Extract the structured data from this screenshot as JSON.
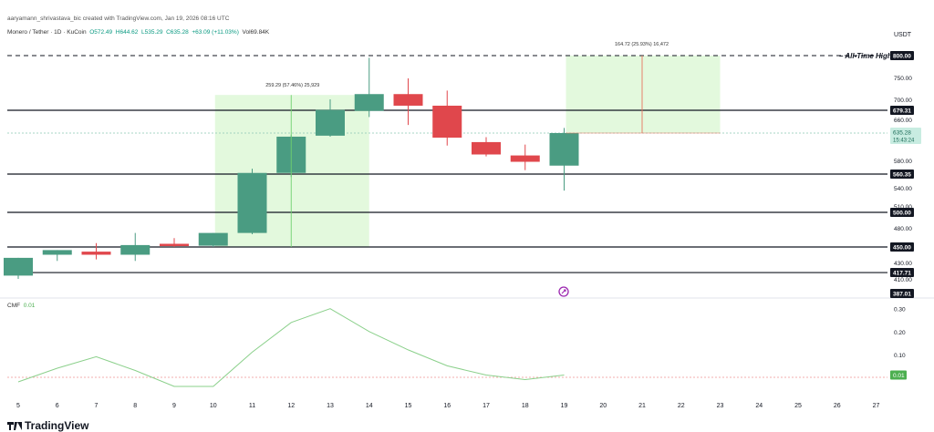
{
  "header": {
    "credit": "aaryamann_shrivastava_bic created with TradingView.com, Jan 19, 2026 08:16 UTC",
    "symbol": "Monero / Tether · 1D · KuCoin",
    "o": "O572.49",
    "h": "H644.62",
    "l": "L535.29",
    "c": "C635.28",
    "change": "+63.09 (+11.03%)",
    "vol": "Vol69.84K"
  },
  "currency": "USDT",
  "brand": "TradingView",
  "colors": {
    "up": "#4a9c82",
    "down": "#e0474c",
    "box": "#d9f7d2",
    "cmf": "#8bd08b"
  },
  "chart_data": {
    "type": "candlestick",
    "x_ticks": [
      "5",
      "6",
      "7",
      "8",
      "9",
      "10",
      "11",
      "12",
      "13",
      "14",
      "15",
      "16",
      "17",
      "18",
      "19",
      "20",
      "21",
      "22",
      "23",
      "24",
      "25",
      "26",
      "27"
    ],
    "y_ticks": [
      "800.00",
      "750.00",
      "700.00",
      "660.00",
      "580.00",
      "540.00",
      "510.00",
      "480.00",
      "430.00",
      "410.00"
    ],
    "candles": [
      {
        "x": 5,
        "o": 414,
        "h": 436,
        "l": 410,
        "c": 436
      },
      {
        "x": 6,
        "o": 440,
        "h": 446,
        "l": 432,
        "c": 446
      },
      {
        "x": 7,
        "o": 444,
        "h": 456,
        "l": 434,
        "c": 440
      },
      {
        "x": 8,
        "o": 440,
        "h": 472,
        "l": 432,
        "c": 453
      },
      {
        "x": 9,
        "o": 455,
        "h": 464,
        "l": 450,
        "c": 452
      },
      {
        "x": 10,
        "o": 452,
        "h": 472,
        "l": 450,
        "c": 472
      },
      {
        "x": 11,
        "o": 472,
        "h": 568,
        "l": 470,
        "c": 562
      },
      {
        "x": 12,
        "o": 562,
        "h": 632,
        "l": 556,
        "c": 628
      },
      {
        "x": 13,
        "o": 630,
        "h": 700,
        "l": 628,
        "c": 680
      },
      {
        "x": 14,
        "o": 678,
        "h": 795,
        "l": 665,
        "c": 712
      },
      {
        "x": 15,
        "o": 712,
        "h": 748,
        "l": 650,
        "c": 688
      },
      {
        "x": 16,
        "o": 688,
        "h": 720,
        "l": 610,
        "c": 626
      },
      {
        "x": 17,
        "o": 617,
        "h": 627,
        "l": 588,
        "c": 592
      },
      {
        "x": 18,
        "o": 590,
        "h": 612,
        "l": 566,
        "c": 578
      },
      {
        "x": 19,
        "o": 572.49,
        "h": 644.62,
        "l": 535.29,
        "c": 635.28
      }
    ],
    "levels": [
      {
        "price": 679.31,
        "label": "679.31"
      },
      {
        "price": 560.35,
        "label": "560.35"
      },
      {
        "price": 500.0,
        "label": "500.00"
      },
      {
        "price": 450.0,
        "label": "450.00"
      },
      {
        "price": 417.71,
        "label": "417.71"
      },
      {
        "price": 387.01,
        "label": "387.01"
      }
    ],
    "ath": {
      "price": 800,
      "label": "All-Time High",
      "tag": "800.00"
    },
    "current": {
      "price": 635.28,
      "label": "635.28",
      "countdown": "15:43:24"
    },
    "measure1": {
      "x0": 10,
      "x1": 14,
      "y0": 450,
      "y1": 710,
      "label": "259.29 (57.46%) 25,929"
    },
    "measure2": {
      "x0": 19,
      "x1": 23,
      "y0": 635.28,
      "y1": 800,
      "label": "164.72 (25.93%) 16,472"
    },
    "cmf": {
      "name": "CMF",
      "value": "0.01",
      "x": [
        5,
        6,
        7,
        8,
        9,
        10,
        11,
        12,
        13,
        14,
        15,
        16,
        17,
        18,
        19
      ],
      "y": [
        -0.02,
        0.04,
        0.09,
        0.03,
        -0.04,
        -0.04,
        0.11,
        0.24,
        0.3,
        0.2,
        0.12,
        0.05,
        0.01,
        -0.01,
        0.01
      ],
      "y_ticks": [
        "0.30",
        "0.20",
        "0.10"
      ],
      "zero_label": "0.01"
    }
  }
}
